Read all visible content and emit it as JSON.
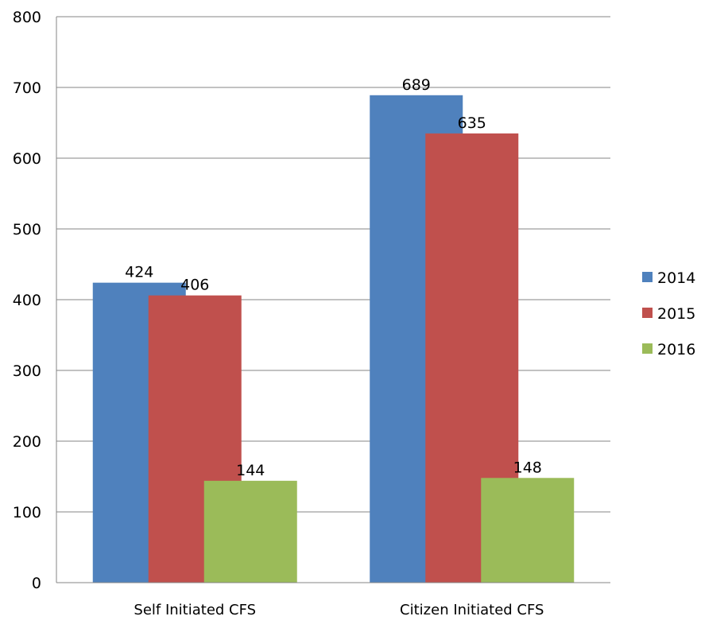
{
  "chart_data": {
    "type": "bar",
    "categories": [
      "Self Initiated CFS",
      "Citizen Initiated CFS"
    ],
    "series": [
      {
        "name": "2014",
        "values": [
          424,
          689
        ],
        "color": "#4F81BD"
      },
      {
        "name": "2015",
        "values": [
          406,
          635
        ],
        "color": "#C0504D"
      },
      {
        "name": "2016",
        "values": [
          144,
          148
        ],
        "color": "#9BBB59"
      }
    ],
    "ylim": [
      0,
      800
    ],
    "yticks": [
      0,
      100,
      200,
      300,
      400,
      500,
      600,
      700,
      800
    ],
    "grid": true,
    "legend_position": "right",
    "title": "",
    "xlabel": "",
    "ylabel": ""
  }
}
